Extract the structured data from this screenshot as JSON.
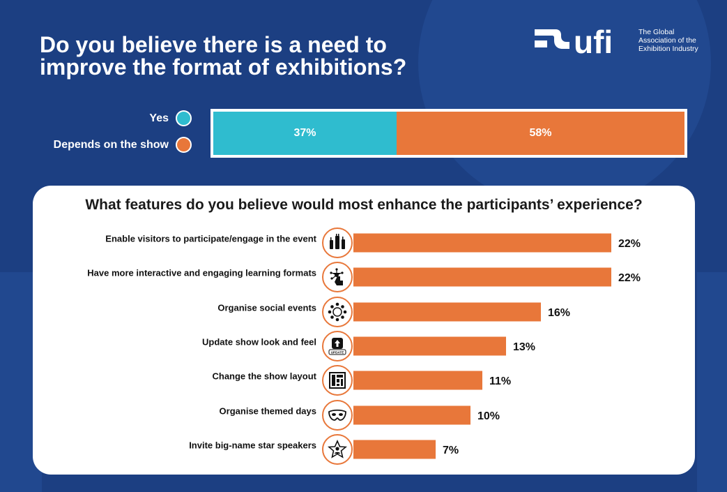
{
  "title": "Do you believe there is a need to improve the format of exhibitions?",
  "logo": {
    "word": "ufi",
    "line1": "The Global",
    "line2": "Association of the",
    "line3": "Exhibition Industry"
  },
  "colors": {
    "background": "#1c3f82",
    "teal": "#2fbccf",
    "orange": "#e8773a",
    "panel": "#ffffff"
  },
  "chart_data": [
    {
      "type": "bar",
      "orientation": "horizontal-stacked",
      "title": "Do you believe there is a need to improve the format of exhibitions?",
      "series": [
        {
          "name": "Yes",
          "value": 37,
          "label": "37%",
          "color": "#2fbccf"
        },
        {
          "name": "Depends on the show",
          "value": 58,
          "label": "58%",
          "color": "#e8773a"
        }
      ],
      "legend_position": "left"
    },
    {
      "type": "bar",
      "orientation": "horizontal",
      "title": "What features do you believe would most enhance the participants’ experience?",
      "categories": [
        "Enable visitors to participate/engage in the event",
        "Have more interactive and engaging learning formats",
        "Organise social events",
        "Update show look and feel",
        "Change the show layout",
        "Organise themed days",
        "Invite big-name star speakers"
      ],
      "values": [
        22,
        22,
        16,
        13,
        11,
        10,
        7
      ],
      "value_labels": [
        "22%",
        "22%",
        "16%",
        "13%",
        "11%",
        "10%",
        "7%"
      ],
      "icons": [
        "raised-hands-icon",
        "touch-network-icon",
        "people-circle-icon",
        "update-icon",
        "layout-icon",
        "mask-icon",
        "star-speaker-icon"
      ],
      "xlim": [
        0,
        22
      ]
    }
  ]
}
